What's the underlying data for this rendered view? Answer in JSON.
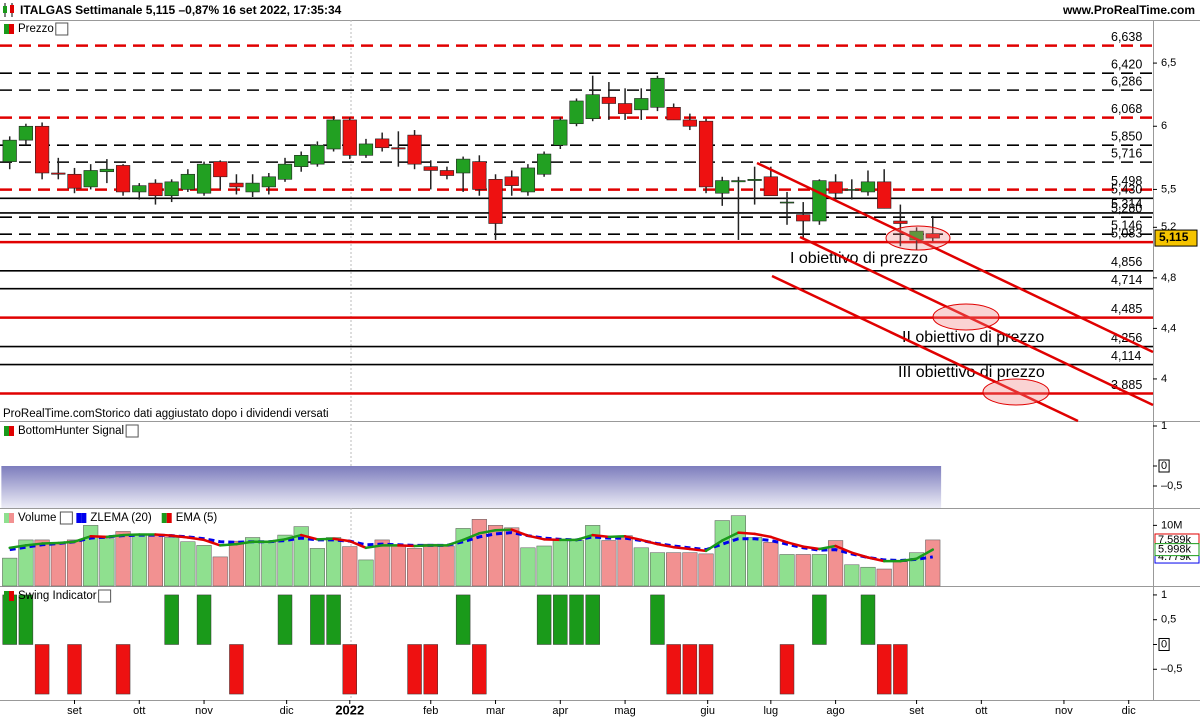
{
  "header": {
    "title": "ITALGAS Settimanale 5,115 –0,87% 16 set 2022, 17:35:34",
    "site": "www.ProRealTime.com"
  },
  "chart_data": [
    {
      "type": "candlestick",
      "title": "Prezzo",
      "open": [
        5.72,
        5.89,
        6.0,
        5.63,
        5.62,
        5.52,
        5.64,
        5.69,
        5.48,
        5.55,
        5.45,
        5.5,
        5.47,
        5.72,
        5.55,
        5.48,
        5.52,
        5.58,
        5.68,
        5.7,
        5.82,
        6.05,
        5.77,
        5.9,
        5.83,
        5.93,
        5.68,
        5.65,
        5.63,
        5.72,
        5.58,
        5.6,
        5.48,
        5.62,
        5.85,
        6.02,
        6.06,
        6.23,
        6.18,
        6.13,
        6.15,
        6.15,
        6.05,
        6.04,
        5.47,
        5.56,
        5.57,
        5.6,
        5.4,
        5.3,
        5.25,
        5.56,
        5.5,
        5.48,
        5.56,
        5.25,
        5.1,
        5.15
      ],
      "high": [
        5.92,
        6.02,
        6.03,
        5.75,
        5.67,
        5.7,
        5.74,
        5.7,
        5.55,
        5.58,
        5.58,
        5.66,
        5.72,
        5.73,
        5.62,
        5.62,
        5.63,
        5.75,
        5.8,
        5.88,
        6.08,
        6.07,
        5.9,
        5.95,
        5.96,
        5.97,
        5.73,
        5.68,
        5.76,
        5.77,
        5.62,
        5.65,
        5.7,
        5.8,
        6.07,
        6.22,
        6.4,
        6.35,
        6.3,
        6.3,
        6.4,
        6.18,
        6.1,
        6.06,
        5.6,
        5.6,
        5.68,
        5.68,
        5.48,
        5.4,
        5.58,
        5.62,
        5.58,
        5.65,
        5.66,
        5.38,
        5.2,
        5.29
      ],
      "low": [
        5.66,
        5.85,
        5.58,
        5.58,
        5.47,
        5.5,
        5.55,
        5.45,
        5.42,
        5.38,
        5.4,
        5.48,
        5.45,
        5.5,
        5.46,
        5.44,
        5.46,
        5.56,
        5.64,
        5.68,
        5.8,
        5.74,
        5.75,
        5.8,
        5.68,
        5.66,
        5.5,
        5.58,
        5.48,
        5.45,
        5.1,
        5.45,
        5.45,
        5.6,
        5.82,
        6.0,
        6.04,
        6.05,
        6.05,
        6.05,
        6.12,
        6.05,
        5.97,
        5.47,
        5.37,
        5.1,
        5.38,
        5.45,
        5.22,
        5.11,
        5.22,
        5.42,
        5.42,
        5.45,
        5.35,
        5.05,
        5.02,
        5.09
      ],
      "close": [
        5.89,
        6.0,
        5.63,
        5.62,
        5.51,
        5.65,
        5.66,
        5.48,
        5.53,
        5.45,
        5.56,
        5.62,
        5.7,
        5.6,
        5.52,
        5.55,
        5.6,
        5.7,
        5.77,
        5.85,
        6.05,
        5.77,
        5.86,
        5.83,
        5.82,
        5.7,
        5.65,
        5.61,
        5.74,
        5.5,
        5.23,
        5.53,
        5.67,
        5.78,
        6.05,
        6.2,
        6.25,
        6.18,
        6.1,
        6.22,
        6.38,
        6.05,
        6.0,
        5.52,
        5.57,
        5.57,
        5.58,
        5.45,
        5.4,
        5.25,
        5.57,
        5.47,
        5.5,
        5.56,
        5.35,
        5.23,
        5.17,
        5.115
      ],
      "up_color": "#22a022",
      "down_color": "#ee1111",
      "ylim": [
        3.667,
        6.841
      ],
      "yticks": [
        {
          "value": 6.5,
          "label": "6,5"
        },
        6,
        {
          "value": 5.5,
          "label": "5,5"
        },
        {
          "value": 5.2,
          "label": "5,2"
        },
        {
          "value": 4.8,
          "label": "4,8"
        },
        {
          "value": 4.4,
          "label": "4,4"
        },
        4
      ],
      "levels": [
        {
          "value": 6.638,
          "label": "6,638",
          "color": "#e00000",
          "style": "dashed"
        },
        {
          "value": 6.42,
          "label": "6,420",
          "color": "#000000",
          "style": "dashed"
        },
        {
          "value": 6.286,
          "label": "6,286",
          "color": "#000000",
          "style": "dashed"
        },
        {
          "value": 6.068,
          "label": "6,068",
          "color": "#e00000",
          "style": "dashed"
        },
        {
          "value": 5.85,
          "label": "5,850",
          "color": "#000000",
          "style": "dashed"
        },
        {
          "value": 5.716,
          "label": "5,716",
          "color": "#000000",
          "style": "dashed"
        },
        {
          "value": 5.498,
          "label": "5,498",
          "color": "#e00000",
          "style": "dashed"
        },
        {
          "value": 5.43,
          "label": "5,430",
          "color": "#000000",
          "style": "solid"
        },
        {
          "value": 5.314,
          "label": "5,314",
          "color": "#000000",
          "style": "solid"
        },
        {
          "value": 5.28,
          "label": "5,280",
          "color": "#000000",
          "style": "dashed"
        },
        {
          "value": 5.146,
          "label": "5,146",
          "color": "#000000",
          "style": "dashed"
        },
        {
          "value": 5.083,
          "label": "5,083",
          "color": "#e00000",
          "style": "solid"
        },
        {
          "value": 4.856,
          "label": "4,856",
          "color": "#000000",
          "style": "solid"
        },
        {
          "value": 4.714,
          "label": "4,714",
          "color": "#000000",
          "style": "solid"
        },
        {
          "value": 4.485,
          "label": "4,485",
          "color": "#e00000",
          "style": "solid"
        },
        {
          "value": 4.256,
          "label": "4,256",
          "color": "#000000",
          "style": "solid"
        },
        {
          "value": 4.114,
          "label": "4,114",
          "color": "#000000",
          "style": "solid"
        },
        {
          "value": 3.885,
          "label": "3,885",
          "color": "#e00000",
          "style": "solid"
        }
      ],
      "last_price": {
        "value": 5.115,
        "label": "5,115"
      },
      "annotations": [
        "I obiettivo di prezzo",
        "II obiettivo di prezzo",
        "III obiettivo di prezzo"
      ],
      "footnote": "ProRealTime.comStorico dati aggiustato dopo i dividendi versati"
    },
    {
      "type": "bar",
      "title": "BottomHunter Signal",
      "values": [
        -1.05,
        -1.05,
        -1.05,
        -1.05,
        -1.05,
        -1.05,
        -1.05,
        -1.05,
        -1.05,
        -1.05,
        -1.05,
        -1.05,
        -1.05,
        -1.05,
        -1.05,
        -1.05,
        -1.05,
        -1.05,
        -1.05,
        -1.05,
        -1.05,
        -1.05,
        -1.05,
        -1.05,
        -1.05,
        -1.05,
        -1.05,
        -1.05,
        -1.05,
        -1.05,
        -1.05,
        -1.05,
        -1.05,
        -1.05,
        -1.05,
        -1.05,
        -1.05,
        -1.05,
        -1.05,
        -1.05,
        -1.05,
        -1.05,
        -1.05,
        -1.05,
        -1.05,
        -1.05,
        -1.05,
        -1.05,
        -1.05,
        -1.05,
        -1.05,
        -1.05,
        -1.05,
        -1.05,
        -1.05,
        -1.05,
        -1.05,
        -1.05
      ],
      "ylim": [
        -1.05,
        1.1
      ],
      "yticks": [
        1,
        0,
        {
          "value": -0.5,
          "label": "–0,5"
        }
      ]
    },
    {
      "type": "volume",
      "series": [
        {
          "name": "Volume",
          "up_color": "#8fe08f",
          "down_color": "#f29191",
          "values": [
            4.6,
            7.6,
            7.6,
            7.2,
            7.6,
            10.0,
            7.8,
            9.0,
            8.6,
            8.4,
            8.0,
            7.3,
            6.7,
            4.8,
            7.4,
            8.0,
            7.2,
            8.4,
            9.8,
            6.2,
            8.0,
            6.5,
            4.3,
            7.6,
            6.8,
            6.2,
            6.9,
            6.6,
            9.5,
            11.0,
            10.0,
            9.6,
            6.3,
            6.6,
            7.5,
            7.5,
            10.0,
            7.5,
            8.3,
            6.3,
            5.5,
            5.5,
            5.5,
            5.3,
            10.8,
            11.6,
            8.0,
            7.2,
            5.2,
            5.2,
            5.2,
            7.5,
            3.5,
            3.1,
            2.8,
            4.0,
            5.5,
            7.6
          ],
          "last_label": {
            "value": 7.589,
            "label": "7.589k"
          },
          "label_color": "#e00000"
        },
        {
          "name": "ZLEMA (20)",
          "color": "#0000ee",
          "values": [
            6.0,
            6.4,
            6.8,
            7.0,
            7.3,
            7.9,
            8.1,
            8.3,
            8.4,
            8.4,
            8.3,
            8.1,
            7.8,
            7.3,
            7.2,
            7.3,
            7.3,
            7.5,
            7.9,
            7.6,
            7.6,
            7.4,
            6.8,
            6.9,
            6.8,
            6.7,
            6.7,
            6.7,
            7.3,
            8.1,
            8.6,
            8.8,
            8.3,
            7.9,
            7.7,
            7.6,
            8.1,
            7.9,
            7.9,
            7.5,
            7.0,
            6.6,
            6.3,
            6.0,
            6.9,
            7.8,
            7.8,
            7.5,
            6.9,
            6.3,
            5.9,
            6.0,
            5.3,
            4.7,
            4.3,
            4.2,
            4.4,
            4.8
          ],
          "last_label": {
            "value": 4.779,
            "label": "4.779k"
          },
          "label_color": "#0000ee"
        },
        {
          "name": "EMA (5)",
          "up_color": "#1a9a1a",
          "down_color": "#e00000",
          "values": [
            6.3,
            6.7,
            7.0,
            7.1,
            7.3,
            8.2,
            8.1,
            8.4,
            8.5,
            8.5,
            8.3,
            8.0,
            7.6,
            6.7,
            6.9,
            7.3,
            7.3,
            7.7,
            8.4,
            7.7,
            7.8,
            7.4,
            6.3,
            6.7,
            6.7,
            6.6,
            6.7,
            6.7,
            7.6,
            8.7,
            9.2,
            9.3,
            8.3,
            7.7,
            7.6,
            7.6,
            8.4,
            8.1,
            8.2,
            7.6,
            6.9,
            6.4,
            6.1,
            5.8,
            7.5,
            8.8,
            8.6,
            8.1,
            7.2,
            6.5,
            6.1,
            6.6,
            5.5,
            4.7,
            4.1,
            4.1,
            4.5,
            6.0
          ],
          "last_label": {
            "value": 5.998,
            "label": "5.998k"
          },
          "label_color": "#1a9a1a"
        }
      ],
      "ylim": [
        0,
        12.7
      ],
      "yticks": [
        {
          "value": 10,
          "label": "10M"
        }
      ]
    },
    {
      "type": "bar",
      "title": "Swing Indicator",
      "up_color": "#1a9a1a",
      "down_color": "#ee1111",
      "values": [
        1,
        1,
        -1,
        0,
        -1,
        0,
        0,
        -1,
        0,
        0,
        1,
        0,
        1,
        0,
        -1,
        0,
        0,
        1,
        0,
        1,
        1,
        -1,
        0,
        0,
        0,
        -1,
        -1,
        0,
        1,
        -1,
        0,
        0,
        0,
        1,
        1,
        1,
        1,
        0,
        0,
        0,
        1,
        -1,
        -1,
        -1,
        0,
        0,
        0,
        0,
        -1,
        0,
        1,
        0,
        0,
        1,
        -1,
        -1,
        0,
        0
      ],
      "ylim": [
        -1.12,
        1.16
      ],
      "yticks": [
        1,
        {
          "value": 0.5,
          "label": "0,5"
        },
        0,
        {
          "value": -0.5,
          "label": "–0,5"
        }
      ],
      "xlim": [
        -0.6,
        70.6
      ],
      "xticks": [
        {
          "value": 4.0,
          "label": "set"
        },
        {
          "value": 8.0,
          "label": "ott"
        },
        {
          "value": 12.0,
          "label": "nov"
        },
        {
          "value": 17.1,
          "label": "dic"
        },
        {
          "value": 21.0,
          "label": "2022",
          "bold": true
        },
        {
          "value": 26.0,
          "label": "feb"
        },
        {
          "value": 30.0,
          "label": "mar"
        },
        {
          "value": 34.0,
          "label": "apr"
        },
        {
          "value": 38.0,
          "label": "mag"
        },
        {
          "value": 43.1,
          "label": "giu"
        },
        {
          "value": 47.0,
          "label": "lug"
        },
        {
          "value": 51.0,
          "label": "ago"
        },
        {
          "value": 56.0,
          "label": "set"
        },
        {
          "value": 60.0,
          "label": "ott"
        },
        {
          "value": 65.1,
          "label": "nov"
        },
        {
          "value": 69.1,
          "label": "dic"
        }
      ]
    }
  ]
}
